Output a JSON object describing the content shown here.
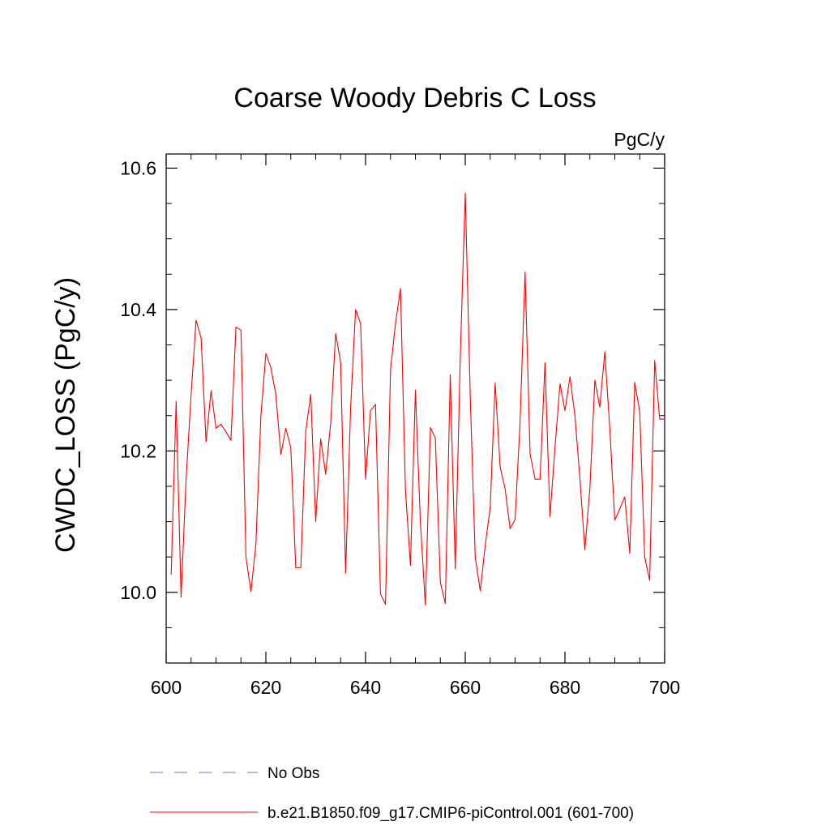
{
  "chart_data": {
    "type": "line",
    "title": "Coarse Woody Debris C Loss",
    "units_label": "PgC/y",
    "ylabel": "CWDC_LOSS  (PgC/y)",
    "xlabel": "",
    "xlim": [
      600,
      700
    ],
    "ylim": [
      9.9,
      10.62
    ],
    "x_ticks": [
      600,
      620,
      640,
      660,
      680,
      700
    ],
    "x_tick_labels": [
      "600",
      "620",
      "640",
      "660",
      "680",
      "700"
    ],
    "y_ticks": [
      10.0,
      10.2,
      10.4,
      10.6
    ],
    "y_tick_labels": [
      "10.0",
      "10.2",
      "10.4",
      "10.6"
    ],
    "grid": false,
    "legend_position": "bottom",
    "series": [
      {
        "name": "b.e21.B1850.f09_g17.CMIP6-piControl.001 (601-700)",
        "color": "#ff0000",
        "x": [
          601,
          602,
          603,
          604,
          605,
          606,
          607,
          608,
          609,
          610,
          611,
          612,
          613,
          614,
          615,
          616,
          617,
          618,
          619,
          620,
          621,
          622,
          623,
          624,
          625,
          626,
          627,
          628,
          629,
          630,
          631,
          632,
          633,
          634,
          635,
          636,
          637,
          638,
          639,
          640,
          641,
          642,
          643,
          644,
          645,
          646,
          647,
          648,
          649,
          650,
          651,
          652,
          653,
          654,
          655,
          656,
          657,
          658,
          659,
          660,
          661,
          662,
          663,
          664,
          665,
          666,
          667,
          668,
          669,
          670,
          671,
          672,
          673,
          674,
          675,
          676,
          677,
          678,
          679,
          680,
          681,
          682,
          683,
          684,
          685,
          686,
          687,
          688,
          689,
          690,
          691,
          692,
          693,
          694,
          695,
          696,
          697,
          698,
          699,
          700
        ],
        "values": [
          10.025,
          10.27,
          9.993,
          10.16,
          10.28,
          10.385,
          10.36,
          10.213,
          10.285,
          10.232,
          10.238,
          10.227,
          10.215,
          10.375,
          10.371,
          10.05,
          10.001,
          10.068,
          10.25,
          10.338,
          10.318,
          10.28,
          10.195,
          10.232,
          10.204,
          10.035,
          10.035,
          10.228,
          10.28,
          10.1,
          10.217,
          10.167,
          10.24,
          10.366,
          10.325,
          10.027,
          10.262,
          10.4,
          10.38,
          10.16,
          10.257,
          10.266,
          9.998,
          9.983,
          10.315,
          10.38,
          10.43,
          10.145,
          10.038,
          10.286,
          10.1,
          9.982,
          10.233,
          10.218,
          10.014,
          9.984,
          10.308,
          10.033,
          10.33,
          10.565,
          10.28,
          10.05,
          10.002,
          10.066,
          10.12,
          10.296,
          10.178,
          10.146,
          10.09,
          10.103,
          10.24,
          10.453,
          10.196,
          10.16,
          10.16,
          10.325,
          10.107,
          10.205,
          10.295,
          10.257,
          10.305,
          10.25,
          10.16,
          10.06,
          10.148,
          10.3,
          10.262,
          10.34,
          10.23,
          10.102,
          10.118,
          10.135,
          10.055,
          10.297,
          10.255,
          10.05,
          10.017,
          10.328,
          10.245,
          10.245
        ]
      },
      {
        "name": "No Obs",
        "color": "#7b68d8",
        "x": [],
        "values": []
      }
    ]
  }
}
